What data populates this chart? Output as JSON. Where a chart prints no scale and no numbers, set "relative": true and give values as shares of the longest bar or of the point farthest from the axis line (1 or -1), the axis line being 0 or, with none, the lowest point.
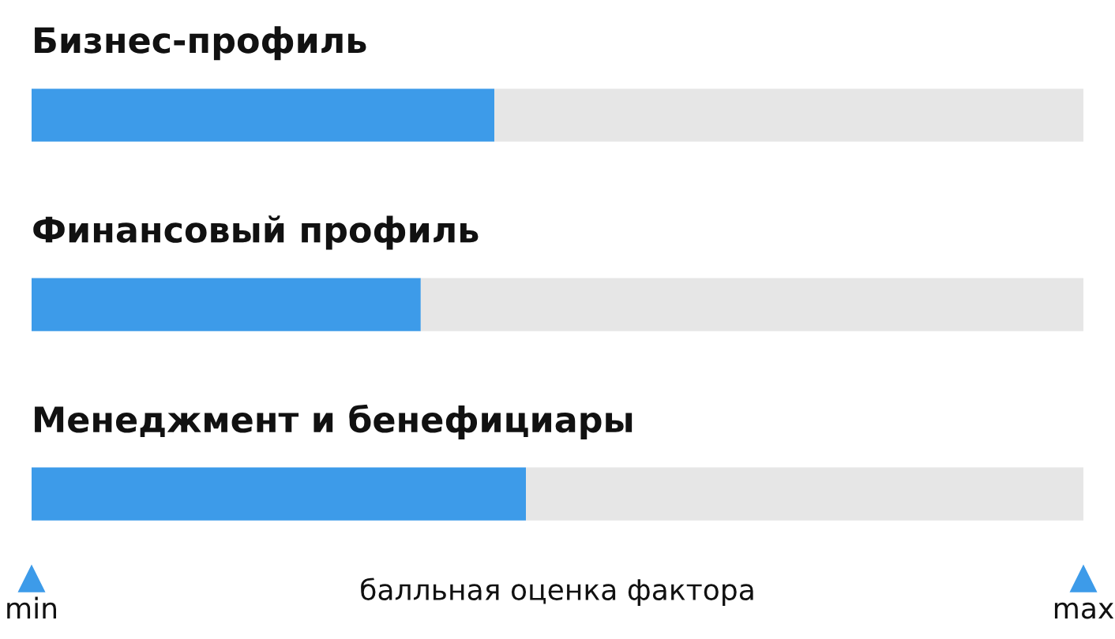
{
  "chart_data": {
    "type": "bar",
    "orientation": "horizontal",
    "stacked": true,
    "categories": [
      "Бизнес-профиль",
      "Финансовый профиль",
      "Менеджмент и бенефициары"
    ],
    "series": [
      {
        "color": "#3d9be9",
        "values": [
          0.44,
          0.37,
          0.47
        ]
      },
      {
        "color": "#e6e6e6",
        "values": [
          0.56,
          0.63,
          0.53
        ]
      }
    ],
    "relative": true,
    "annotations": [
      "min",
      "max"
    ],
    "xlabel": "балльная оценка фактора",
    "legend": false
  }
}
